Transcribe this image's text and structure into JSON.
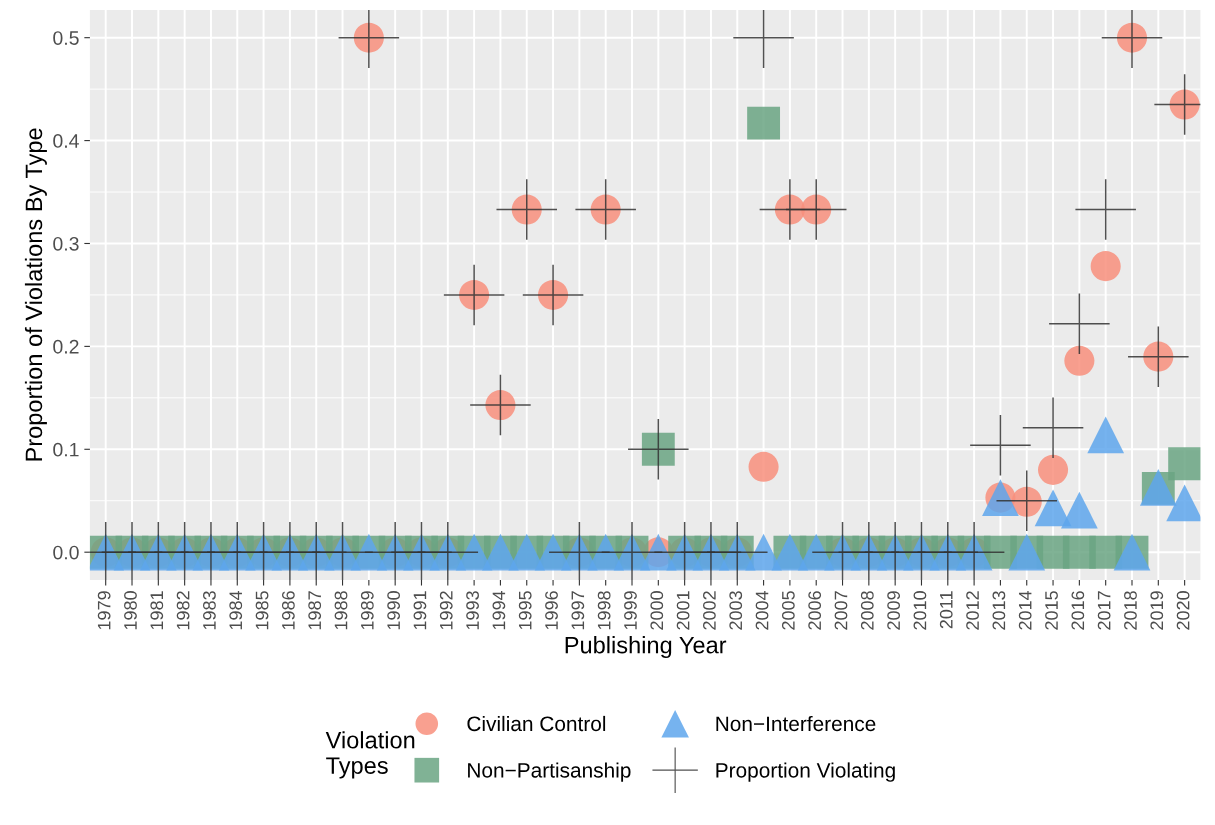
{
  "chart_data": {
    "type": "scatter",
    "xlabel": "Publishing Year",
    "ylabel": "Proportion of Violations By Type",
    "legend_title": "Violation\nTypes",
    "categories": [
      "1979",
      "1980",
      "1981",
      "1982",
      "1983",
      "1984",
      "1985",
      "1986",
      "1987",
      "1988",
      "1989",
      "1990",
      "1991",
      "1992",
      "1993",
      "1994",
      "1995",
      "1996",
      "1997",
      "1998",
      "1999",
      "2000",
      "2001",
      "2002",
      "2003",
      "2004",
      "2005",
      "2006",
      "2007",
      "2008",
      "2009",
      "2010",
      "2011",
      "2012",
      "2013",
      "2014",
      "2015",
      "2016",
      "2017",
      "2018",
      "2019",
      "2020"
    ],
    "series": [
      {
        "name": "Civilian Control",
        "color": "#f88f7d",
        "marker": "circle",
        "values": [
          0,
          0,
          0,
          0,
          0,
          0,
          0,
          0,
          0,
          0,
          0.5,
          0,
          0,
          0,
          0.25,
          0.143,
          0.333,
          0.25,
          0,
          0.333,
          0,
          0,
          0,
          0,
          0,
          0.083,
          0.333,
          0.333,
          0,
          0,
          0,
          0,
          0,
          0,
          0.053,
          0.049,
          0.08,
          0.186,
          0.278,
          0.5,
          0.19,
          0.435
        ]
      },
      {
        "name": "Non−Partisanship",
        "color": "#6aa583",
        "marker": "square",
        "values": [
          0,
          0,
          0,
          0,
          0,
          0,
          0,
          0,
          0,
          0,
          0,
          0,
          0,
          0,
          0,
          0,
          0,
          0,
          0,
          0,
          0,
          0.1,
          0,
          0,
          0,
          0.417,
          0,
          0,
          0,
          0,
          0,
          0,
          0,
          0,
          0,
          0,
          0,
          0,
          0,
          0,
          0.062,
          0.086
        ]
      },
      {
        "name": "Non−Interference",
        "color": "#5ea6ec",
        "marker": "triangle",
        "values": [
          0,
          0,
          0,
          0,
          0,
          0,
          0,
          0,
          0,
          0,
          0,
          0,
          0,
          0,
          0,
          0,
          0,
          0,
          0,
          0,
          0,
          0,
          0,
          0,
          0,
          0,
          0,
          0,
          0,
          0,
          0,
          0,
          0,
          0,
          0.053,
          0,
          0.043,
          0.041,
          0.114,
          0,
          0.063,
          0.048
        ]
      },
      {
        "name": "Proportion Violating",
        "color": "#333333",
        "marker": "cross",
        "values": [
          0,
          0,
          0,
          0,
          0,
          0,
          0,
          0,
          0,
          0,
          0.5,
          0,
          0,
          0,
          0.25,
          0.143,
          0.333,
          0.25,
          0,
          0.333,
          0,
          0.1,
          0,
          0,
          0,
          0.5,
          0.333,
          0.333,
          0,
          0,
          0,
          0,
          0,
          0,
          0.104,
          0.05,
          0.121,
          0.222,
          0.333,
          0.5,
          0.19,
          0.435
        ]
      }
    ],
    "ylim": [
      -0.027,
      0.527
    ],
    "yticks": [
      {
        "value": 0,
        "label": "0.0"
      },
      0.1,
      0.2,
      0.3,
      0.4,
      0.5
    ],
    "grid": true,
    "legend": "bottom"
  }
}
